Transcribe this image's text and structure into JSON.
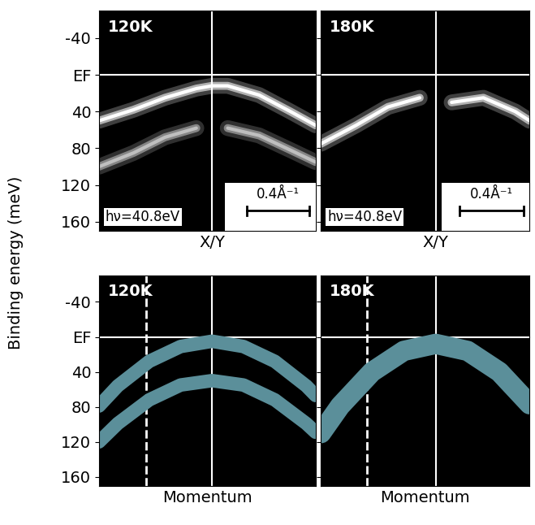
{
  "y_label": "Binding energy (meV)",
  "chart_data": [
    {
      "type": "band_map",
      "title": "120K",
      "annotation": "hν=40.8eV",
      "scale_bar": {
        "length": 0.4,
        "label": "0.4Å⁻¹"
      },
      "xlim": [
        -0.72,
        0.66
      ],
      "ylim": [
        170,
        -70
      ],
      "xticks": [
        {
          "value": 0,
          "label": "X/Y"
        }
      ],
      "yticks": [
        -40,
        {
          "value": 0,
          "label": "EF"
        },
        40,
        80,
        120,
        160
      ],
      "tick_labels": true,
      "reference_x": 0,
      "reference_y": 0,
      "x": [
        -0.72,
        -0.5,
        -0.3,
        -0.1,
        0,
        0.1,
        0.3,
        0.5,
        0.66
      ],
      "series": [
        {
          "color": "#ffffff",
          "values": [
            50,
            38,
            25,
            15,
            12,
            12,
            22,
            40,
            55
          ]
        },
        {
          "color": "#bfbfbf",
          "values": [
            100,
            85,
            68,
            58,
            null,
            58,
            66,
            82,
            95
          ]
        }
      ]
    },
    {
      "type": "band_map",
      "title": "180K",
      "annotation": "hν=40.8eV",
      "scale_bar": {
        "length": 0.4,
        "label": "0.4Å⁻¹"
      },
      "xlim": [
        -0.72,
        0.59
      ],
      "ylim": [
        170,
        -70
      ],
      "xticks": [
        {
          "value": 0,
          "label": "X/Y"
        }
      ],
      "yticks": [
        -40,
        {
          "value": 0,
          "label": "EF"
        },
        40,
        80,
        120,
        160
      ],
      "tick_labels": "x",
      "reference_x": 0,
      "reference_y": 0,
      "x": [
        -0.72,
        -0.5,
        -0.3,
        -0.1,
        0,
        0.1,
        0.3,
        0.5,
        0.59
      ],
      "series": [
        {
          "color": "#ffffff",
          "values": [
            75,
            55,
            35,
            25,
            null,
            30,
            25,
            40,
            50
          ]
        }
      ]
    },
    {
      "type": "line",
      "title": "120K",
      "x_label": "Momentum",
      "xlim": [
        -0.72,
        0.66
      ],
      "ylim": [
        170,
        -70
      ],
      "xticks": [],
      "yticks": [
        -40,
        {
          "value": 0,
          "label": "EF"
        },
        40,
        80,
        120,
        160
      ],
      "tick_labels": "y",
      "reference_x": 0,
      "reference_y": 0,
      "marker_x": -0.42,
      "x": [
        -0.72,
        -0.6,
        -0.4,
        -0.2,
        0,
        0.2,
        0.4,
        0.6,
        0.66
      ],
      "series": [
        {
          "color": "#5b8f9a",
          "values": [
            79,
            56,
            28,
            11,
            5,
            11,
            28,
            56,
            67
          ]
        },
        {
          "color": "#5b8f9a",
          "values": [
            120,
            99,
            72,
            55,
            50,
            55,
            72,
            99,
            109
          ]
        }
      ]
    },
    {
      "type": "line",
      "title": "180K",
      "x_label": "Momentum",
      "xlim": [
        -0.72,
        0.59
      ],
      "ylim": [
        170,
        -70
      ],
      "xticks": [],
      "yticks": [
        -40,
        {
          "value": 0,
          "label": "EF"
        },
        40,
        80,
        120,
        160
      ],
      "tick_labels": false,
      "reference_x": 0,
      "reference_y": 0,
      "marker_x": -0.43,
      "x": [
        -0.72,
        -0.6,
        -0.4,
        -0.2,
        0,
        0.2,
        0.4,
        0.59
      ],
      "series": [
        {
          "color": "#5b8f9a",
          "values": [
            110,
            79,
            40,
            16,
            8,
            16,
            40,
            77
          ]
        }
      ]
    }
  ]
}
